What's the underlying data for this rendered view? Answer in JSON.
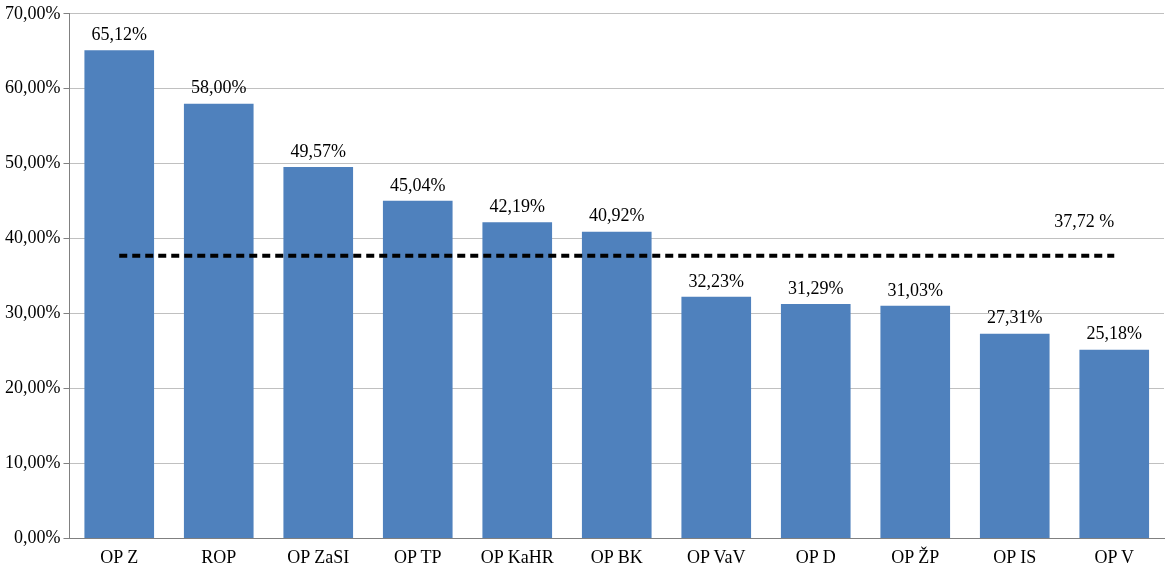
{
  "chart_data": {
    "type": "bar",
    "categories": [
      "OP Z",
      "ROP",
      "OP ZaSI",
      "OP TP",
      "OP KaHR",
      "OP BK",
      "OP VaV",
      "OP D",
      "OP ŽP",
      "OP IS",
      "OP V"
    ],
    "values": [
      65.12,
      58.0,
      49.57,
      45.04,
      42.19,
      40.92,
      32.23,
      31.29,
      31.03,
      27.31,
      25.18
    ],
    "value_labels": [
      "65,12%",
      "58,00%",
      "49,57%",
      "45,04%",
      "42,19%",
      "40,92%",
      "32,23%",
      "31,29%",
      "31,03%",
      "27,31%",
      "25,18%"
    ],
    "color": "#4f81bd",
    "ylim": [
      0,
      70
    ],
    "yticks": [
      {
        "value": 0,
        "label": "0,00%"
      },
      {
        "value": 10,
        "label": "10,00%"
      },
      {
        "value": 20,
        "label": "20,00%"
      },
      {
        "value": 30,
        "label": "30,00%"
      },
      {
        "value": 40,
        "label": "40,00%"
      },
      {
        "value": 50,
        "label": "50,00%"
      },
      {
        "value": 60,
        "label": "60,00%"
      },
      {
        "value": 70,
        "label": "70,00%"
      }
    ],
    "grid": "y",
    "ref_lines": [
      {
        "axis": "y",
        "value": 37.72,
        "label": "37,72 %",
        "color": "#000000",
        "line_style": "dashed"
      }
    ]
  }
}
